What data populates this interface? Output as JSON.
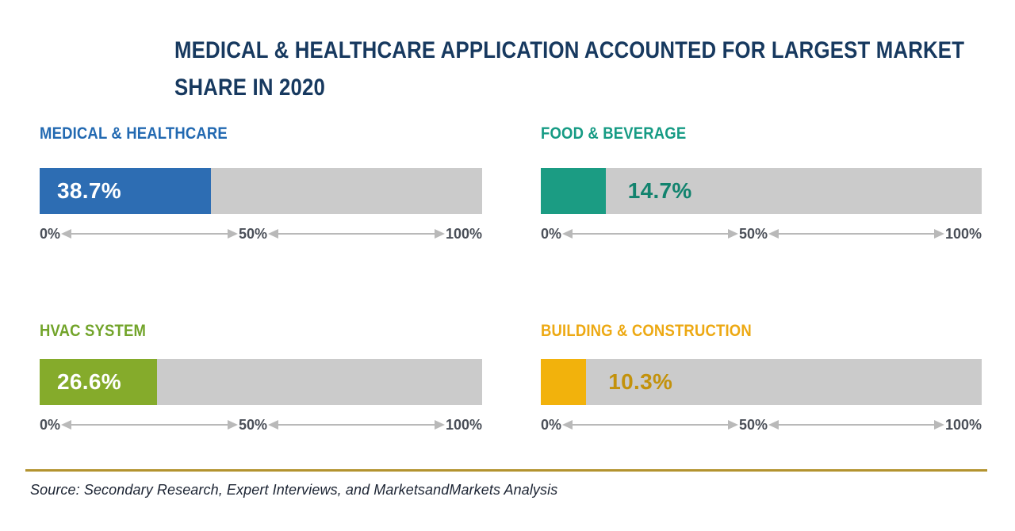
{
  "title": {
    "lines": [
      "MEDICAL & HEALTHCARE APPLICATION ACCOUNTED FOR LARGEST MARKET",
      "SHARE IN 2020"
    ]
  },
  "axis": {
    "ticks": [
      "0%",
      "50%",
      "100%"
    ]
  },
  "panels": [
    {
      "label": "MEDICAL & HEALTHCARE",
      "value": 38.7,
      "value_label": "38.7%",
      "label_color": "#2269b1",
      "fill_color": "#2d6db3",
      "value_color": "#ffffff"
    },
    {
      "label": "FOOD & BEVERAGE",
      "value": 14.7,
      "value_label": "14.7%",
      "label_color": "#169b84",
      "fill_color": "#1b9c83",
      "value_color": "#12836e"
    },
    {
      "label": "HVAC SYSTEM",
      "value": 26.6,
      "value_label": "26.6%",
      "label_color": "#72a42a",
      "fill_color": "#85ab2b",
      "value_color": "#ffffff"
    },
    {
      "label": "BUILDING & CONSTRUCTION",
      "value": 10.3,
      "value_label": "10.3%",
      "label_color": "#eda913",
      "fill_color": "#f2b20c",
      "value_color": "#c3920c"
    }
  ],
  "source": {
    "text": "Source: Secondary Research, Expert Interviews, and MarketsandMarkets Analysis"
  },
  "colors": {
    "title": "#17395f",
    "track": "#cbcbcb",
    "arrow": "#b9b9b9",
    "axis_text": "#4a4f58",
    "rule": "#b3932f",
    "source_text": "#1c2433"
  },
  "chart_data": {
    "type": "bar",
    "title": "MEDICAL & HEALTHCARE APPLICATION ACCOUNTED FOR LARGEST MARKET SHARE IN 2020",
    "categories": [
      "MEDICAL & HEALTHCARE",
      "FOOD & BEVERAGE",
      "HVAC SYSTEM",
      "BUILDING & CONSTRUCTION"
    ],
    "values": [
      38.7,
      14.7,
      26.6,
      10.3
    ],
    "value_labels": [
      "38.7%",
      "14.7%",
      "26.6%",
      "10.3%"
    ],
    "xlabel": "",
    "ylabel": "",
    "xlim": [
      0,
      100
    ],
    "tick_labels": [
      "0%",
      "50%",
      "100%"
    ],
    "orientation": "horizontal",
    "legend": "none",
    "grid": false,
    "layout": "2x2 grid of single-value horizontal progress bars",
    "source_note": "Source: Secondary Research, Expert Interviews, and MarketsandMarkets Analysis"
  }
}
